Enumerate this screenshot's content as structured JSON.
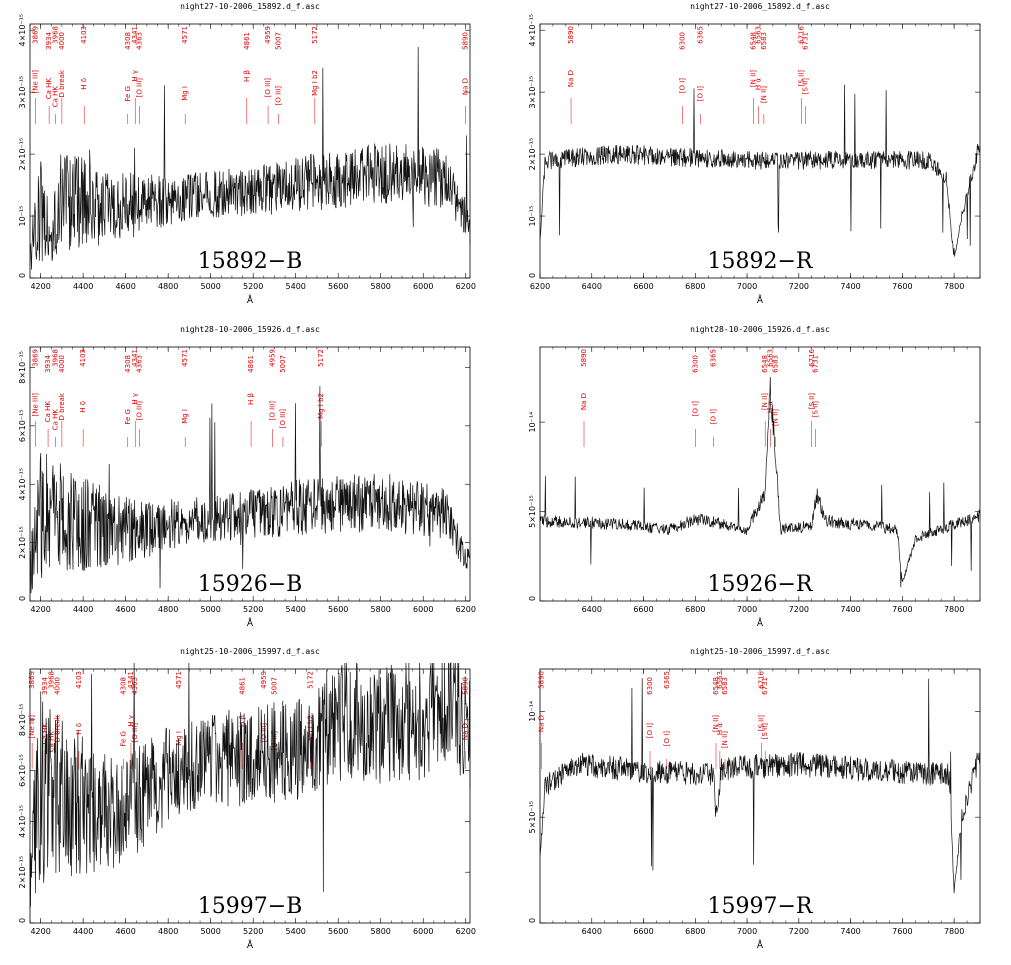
{
  "chart_data": [
    {
      "type": "line",
      "panel_id": "15892-B",
      "title": "night27-10-2006_15892.d_f.asc",
      "big_label": "15892−B",
      "xlabel": "Å",
      "xlim": [
        4150,
        6220
      ],
      "ylim": [
        0,
        4.1e-15
      ],
      "xticks": [
        4200,
        4400,
        4600,
        4800,
        5000,
        5200,
        5400,
        5600,
        5800,
        6000,
        6200
      ],
      "yticks": [
        {
          "v": 0,
          "label": "0"
        },
        {
          "v": 1e-15,
          "label": "10⁻¹⁵"
        },
        {
          "v": 2e-15,
          "label": "2×10⁻¹⁵"
        },
        {
          "v": 3e-15,
          "label": "3×10⁻¹⁵"
        },
        {
          "v": 4e-15,
          "label": "4×10⁻¹⁵"
        }
      ],
      "lines": [
        {
          "wave": "3869",
          "label": "[Ne III]",
          "x": 4175
        },
        {
          "wave": "3934",
          "label": "Ca HK",
          "x": 4240
        },
        {
          "wave": "3968",
          "label": "Ca HK",
          "x": 4270
        },
        {
          "wave": "4000",
          "label": "D break",
          "x": 4300
        },
        {
          "wave": "4103",
          "label": "H δ",
          "x": 4405
        },
        {
          "wave": "4308",
          "label": "Fe G",
          "x": 4610
        },
        {
          "wave": "4341",
          "label": "H γ",
          "x": 4645
        },
        {
          "wave": "4363",
          "label": "[O III]",
          "x": 4665
        },
        {
          "wave": "4571",
          "label": "Mg I",
          "x": 4880
        },
        {
          "wave": "4861",
          "label": "H β",
          "x": 5170
        },
        {
          "wave": "4959",
          "label": "[O III]",
          "x": 5270
        },
        {
          "wave": "5007",
          "label": "[O III]",
          "x": 5320
        },
        {
          "wave": "5172",
          "label": "Mg I b2",
          "x": 5490
        },
        {
          "wave": "5890",
          "label": "Na D",
          "x": 6200
        }
      ],
      "series": [
        {
          "shape": "blue_noisy",
          "start": 9e-16,
          "end": 1.6e-15,
          "noise": 4.5e-16,
          "points": [
            [
              4150,
              4e-16
            ],
            [
              4200,
              1.1e-15
            ],
            [
              4250,
              6e-16
            ],
            [
              4300,
              1.3e-15
            ],
            [
              4500,
              1.1e-15
            ],
            [
              4800,
              1.25e-15
            ],
            [
              5000,
              1.35e-15
            ],
            [
              5400,
              1.5e-15
            ],
            [
              5800,
              1.7e-15
            ],
            [
              6100,
              1.6e-15
            ],
            [
              6200,
              1e-15
            ],
            [
              6220,
              7e-16
            ]
          ]
        }
      ]
    },
    {
      "type": "line",
      "panel_id": "15892-R",
      "title": "night27-10-2006_15892.d_f.asc",
      "big_label": "15892−R",
      "xlabel": "Å",
      "xlim": [
        6200,
        7900
      ],
      "ylim": [
        0,
        4.1e-15
      ],
      "xticks": [
        6200,
        6400,
        6600,
        6800,
        7000,
        7200,
        7400,
        7600,
        7800
      ],
      "yticks": [
        {
          "v": 0,
          "label": "0"
        },
        {
          "v": 1e-15,
          "label": "10⁻¹⁵"
        },
        {
          "v": 2e-15,
          "label": "2×10⁻¹⁵"
        },
        {
          "v": 3e-15,
          "label": "3×10⁻¹⁵"
        },
        {
          "v": 4e-15,
          "label": "4×10⁻¹⁵"
        }
      ],
      "lines": [
        {
          "wave": "5890",
          "label": "Na D",
          "x": 6320
        },
        {
          "wave": "6300",
          "label": "[O I]",
          "x": 6750
        },
        {
          "wave": "6365",
          "label": "[O I]",
          "x": 6820
        },
        {
          "wave": "6548",
          "label": "[N II]",
          "x": 7025
        },
        {
          "wave": "6563",
          "label": "H α",
          "x": 7045
        },
        {
          "wave": "6583",
          "label": "[N II]",
          "x": 7065
        },
        {
          "wave": "6716",
          "label": "[S II]",
          "x": 7210
        },
        {
          "wave": "6731",
          "label": "[S II]",
          "x": 7225
        }
      ],
      "series": [
        {
          "shape": "red_flat",
          "points": [
            [
              6200,
              6e-16
            ],
            [
              6220,
              1.9e-15
            ],
            [
              6500,
              2e-15
            ],
            [
              7000,
              1.9e-15
            ],
            [
              7700,
              1.9e-15
            ],
            [
              7770,
              1.6e-15
            ],
            [
              7800,
              3e-16
            ],
            [
              7830,
              1e-15
            ],
            [
              7900,
              2.2e-15
            ]
          ]
        }
      ]
    },
    {
      "type": "line",
      "panel_id": "15926-B",
      "title": "night28-10-2006_15926.d_f.asc",
      "big_label": "15926−B",
      "xlabel": "Å",
      "xlim": [
        4150,
        6220
      ],
      "ylim": [
        0,
        8.7e-15
      ],
      "xticks": [
        4200,
        4400,
        4600,
        4800,
        5000,
        5200,
        5400,
        5600,
        5800,
        6000,
        6200
      ],
      "yticks": [
        {
          "v": 0,
          "label": "0"
        },
        {
          "v": 2e-15,
          "label": "2×10⁻¹⁵"
        },
        {
          "v": 4e-15,
          "label": "4×10⁻¹⁵"
        },
        {
          "v": 6e-15,
          "label": "6×10⁻¹⁵"
        },
        {
          "v": 8e-15,
          "label": "8×10⁻¹⁵"
        }
      ],
      "lines": [
        {
          "wave": "3869",
          "label": "[Ne III]",
          "x": 4175
        },
        {
          "wave": "3934",
          "label": "Ca HK",
          "x": 4235
        },
        {
          "wave": "3968",
          "label": "Ca HK",
          "x": 4270
        },
        {
          "wave": "4000",
          "label": "D break",
          "x": 4300
        },
        {
          "wave": "4103",
          "label": "H δ",
          "x": 4400
        },
        {
          "wave": "4308",
          "label": "Fe G",
          "x": 4610
        },
        {
          "wave": "4341",
          "label": "H γ",
          "x": 4645
        },
        {
          "wave": "4363",
          "label": "[O III]",
          "x": 4665
        },
        {
          "wave": "4571",
          "label": "Mg I",
          "x": 4880
        },
        {
          "wave": "4861",
          "label": "H β",
          "x": 5190
        },
        {
          "wave": "4959",
          "label": "[O III]",
          "x": 5290
        },
        {
          "wave": "5007",
          "label": "[O III]",
          "x": 5340
        },
        {
          "wave": "5172",
          "label": "Mg I b2",
          "x": 5520
        }
      ],
      "series": [
        {
          "shape": "blue_noisy",
          "points": [
            [
              4150,
              1e-15
            ],
            [
              4200,
              3e-15
            ],
            [
              4300,
              2.8e-15
            ],
            [
              4600,
              2.4e-15
            ],
            [
              5000,
              2.8e-15
            ],
            [
              5400,
              3.2e-15
            ],
            [
              5800,
              3.4e-15
            ],
            [
              6100,
              3e-15
            ],
            [
              6200,
              1.5e-15
            ]
          ]
        }
      ]
    },
    {
      "type": "line",
      "panel_id": "15926-R",
      "title": "night28-10-2006_15926.d_f.asc",
      "big_label": "15926−R",
      "xlabel": "Å",
      "xlim": [
        6200,
        7900
      ],
      "ylim": [
        0,
        1.42e-14
      ],
      "xticks": [
        6400,
        6600,
        6800,
        7000,
        7200,
        7400,
        7600,
        7800
      ],
      "yticks": [
        {
          "v": 0,
          "label": "0"
        },
        {
          "v": 5e-15,
          "label": "5×10⁻¹⁵"
        },
        {
          "v": 1e-14,
          "label": "10⁻¹⁴"
        }
      ],
      "lines": [
        {
          "wave": "5890",
          "label": "Na D",
          "x": 6370
        },
        {
          "wave": "6300",
          "label": "[O I]",
          "x": 6800
        },
        {
          "wave": "6365",
          "label": "[O I]",
          "x": 6870
        },
        {
          "wave": "6548",
          "label": "[N II]",
          "x": 7070
        },
        {
          "wave": "6563",
          "label": "H α",
          "x": 7090
        },
        {
          "wave": "6583",
          "label": "[N II]",
          "x": 7110
        },
        {
          "wave": "6716",
          "label": "[S II]",
          "x": 7250
        },
        {
          "wave": "6731",
          "label": "[S II]",
          "x": 7265
        }
      ],
      "series": [
        {
          "shape": "red_emission",
          "points": [
            [
              6200,
              4.5e-15
            ],
            [
              6500,
              4.3e-15
            ],
            [
              6700,
              4e-15
            ],
            [
              6800,
              4.6e-15
            ],
            [
              7000,
              4e-15
            ],
            [
              7070,
              6e-15
            ],
            [
              7090,
              1.2e-14
            ],
            [
              7110,
              8e-15
            ],
            [
              7130,
              4e-15
            ],
            [
              7250,
              4.2e-15
            ],
            [
              7270,
              6e-15
            ],
            [
              7300,
              4.5e-15
            ],
            [
              7580,
              4e-15
            ],
            [
              7600,
              1e-15
            ],
            [
              7650,
              3.5e-15
            ],
            [
              7900,
              4.8e-15
            ]
          ]
        }
      ]
    },
    {
      "type": "line",
      "panel_id": "15997-B",
      "title": "night25-10-2006_15997.d_f.asc",
      "big_label": "15997−B",
      "xlabel": "Å",
      "xlim": [
        4150,
        6220
      ],
      "ylim": [
        0,
        1e-14
      ],
      "xticks": [
        4200,
        4400,
        4600,
        4800,
        5000,
        5200,
        5400,
        5600,
        5800,
        6000,
        6200
      ],
      "yticks": [
        {
          "v": 0,
          "label": "0"
        },
        {
          "v": 2e-15,
          "label": "2×10⁻¹⁵"
        },
        {
          "v": 4e-15,
          "label": "4×10⁻¹⁵"
        },
        {
          "v": 6e-15,
          "label": "6×10⁻¹⁵"
        },
        {
          "v": 8e-15,
          "label": "8×10⁻¹⁵"
        }
      ],
      "lines": [
        {
          "wave": "3869",
          "label": "[Ne III]",
          "x": 4160
        },
        {
          "wave": "3934",
          "label": "Ca HK",
          "x": 4220
        },
        {
          "wave": "3968",
          "label": "Ca HK",
          "x": 4250
        },
        {
          "wave": "4000",
          "label": "D break",
          "x": 4280
        },
        {
          "wave": "4103",
          "label": "H δ",
          "x": 4380
        },
        {
          "wave": "4308",
          "label": "Fe G",
          "x": 4590
        },
        {
          "wave": "4341",
          "label": "H γ",
          "x": 4625
        },
        {
          "wave": "4363",
          "label": "[O III]",
          "x": 4645
        },
        {
          "wave": "4571",
          "label": "Mg I",
          "x": 4850
        },
        {
          "wave": "4861",
          "label": "H β",
          "x": 5150
        },
        {
          "wave": "4959",
          "label": "[O III]",
          "x": 5250
        },
        {
          "wave": "5007",
          "label": "[O III]",
          "x": 5300
        },
        {
          "wave": "5172",
          "label": "Mg I b2",
          "x": 5470
        },
        {
          "wave": "5890",
          "label": "Na D",
          "x": 6200
        }
      ],
      "series": [
        {
          "shape": "blue_rising",
          "points": [
            [
              4150,
              2e-15
            ],
            [
              4200,
              5.5e-15
            ],
            [
              4300,
              5e-15
            ],
            [
              4500,
              4.3e-15
            ],
            [
              4600,
              4.5e-15
            ],
            [
              4800,
              5.8e-15
            ],
            [
              5000,
              6.4e-15
            ],
            [
              5200,
              6.6e-15
            ],
            [
              5400,
              6.8e-15
            ],
            [
              5600,
              8e-15
            ],
            [
              5800,
              7.8e-15
            ],
            [
              6000,
              8e-15
            ],
            [
              6150,
              8.8e-15
            ],
            [
              6200,
              7.5e-15
            ]
          ]
        }
      ]
    },
    {
      "type": "line",
      "panel_id": "15997-R",
      "title": "night25-10-2006_15997.d_f.asc",
      "big_label": "15997−R",
      "xlabel": "Å",
      "xlim": [
        6200,
        7900
      ],
      "ylim": [
        0,
        1.2e-14
      ],
      "xticks": [
        6400,
        6600,
        6800,
        7000,
        7200,
        7400,
        7600,
        7800
      ],
      "yticks": [
        {
          "v": 0,
          "label": "0"
        },
        {
          "v": 5e-15,
          "label": "5×10⁻¹⁵"
        },
        {
          "v": 1e-14,
          "label": "10⁻¹⁴"
        }
      ],
      "lines": [
        {
          "wave": "5890",
          "label": "Na D",
          "x": 6205
        },
        {
          "wave": "6300",
          "label": "[O I]",
          "x": 6625
        },
        {
          "wave": "6365",
          "label": "[O I]",
          "x": 6690
        },
        {
          "wave": "6548",
          "label": "[N II]",
          "x": 6880
        },
        {
          "wave": "6563",
          "label": "H α",
          "x": 6895
        },
        {
          "wave": "6583",
          "label": "[N II]",
          "x": 6915
        },
        {
          "wave": "6716",
          "label": "[S II]",
          "x": 7055
        },
        {
          "wave": "6731",
          "label": "[S II]",
          "x": 7070
        }
      ],
      "series": [
        {
          "shape": "red_flat",
          "points": [
            [
              6200,
              3e-15
            ],
            [
              6220,
              6.5e-15
            ],
            [
              6350,
              7.5e-15
            ],
            [
              6600,
              7.2e-15
            ],
            [
              6870,
              7e-15
            ],
            [
              6880,
              5e-15
            ],
            [
              6900,
              7.3e-15
            ],
            [
              7200,
              7.5e-15
            ],
            [
              7500,
              7.2e-15
            ],
            [
              7780,
              7e-15
            ],
            [
              7800,
              1.5e-15
            ],
            [
              7830,
              5e-15
            ],
            [
              7900,
              8e-15
            ]
          ]
        }
      ]
    }
  ]
}
